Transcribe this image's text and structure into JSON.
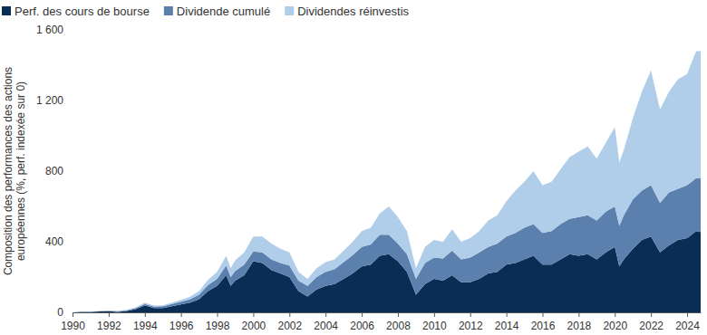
{
  "chart_data": {
    "type": "area",
    "stacked": true,
    "ylabel": "Composition des performances des actions européennes (%, perf. indexée sur 0)",
    "x": [
      1990,
      1990.5,
      1991,
      1991.5,
      1992,
      1992.5,
      1993,
      1993.5,
      1994,
      1994.5,
      1995,
      1995.5,
      1996,
      1996.5,
      1997,
      1997.5,
      1998,
      1998.5,
      1998.75,
      1999,
      1999.5,
      2000,
      2000.5,
      2001,
      2001.5,
      2002,
      2002.5,
      2003,
      2003.5,
      2004,
      2004.5,
      2005,
      2005.5,
      2006,
      2006.5,
      2007,
      2007.5,
      2008,
      2008.5,
      2009,
      2009.5,
      2010,
      2010.5,
      2011,
      2011.5,
      2012,
      2012.5,
      2013,
      2013.5,
      2014,
      2014.5,
      2015,
      2015.5,
      2016,
      2016.5,
      2017,
      2017.5,
      2018,
      2018.5,
      2019,
      2019.5,
      2020,
      2020.25,
      2020.5,
      2021,
      2021.5,
      2022,
      2022.5,
      2023,
      2023.5,
      2024,
      2024.5,
      2024.75
    ],
    "series": [
      {
        "name": "Perf. des cours de bourse",
        "color": "#0a2d55",
        "values": [
          0,
          2,
          2,
          5,
          6,
          3,
          8,
          18,
          40,
          25,
          25,
          35,
          45,
          55,
          75,
          120,
          150,
          210,
          150,
          180,
          210,
          290,
          280,
          240,
          220,
          200,
          120,
          90,
          130,
          150,
          160,
          190,
          220,
          260,
          270,
          320,
          330,
          290,
          230,
          100,
          160,
          190,
          180,
          210,
          170,
          170,
          190,
          220,
          230,
          270,
          280,
          300,
          320,
          270,
          270,
          300,
          330,
          320,
          330,
          300,
          340,
          370,
          260,
          300,
          360,
          410,
          430,
          340,
          380,
          410,
          420,
          460,
          455
        ]
      },
      {
        "name": "Dividende cumulé",
        "color": "#5b80ae",
        "values": [
          0,
          1,
          2,
          2,
          3,
          4,
          4,
          6,
          8,
          8,
          10,
          13,
          15,
          20,
          25,
          35,
          40,
          55,
          50,
          55,
          60,
          55,
          60,
          60,
          60,
          65,
          60,
          60,
          70,
          80,
          85,
          95,
          105,
          110,
          115,
          120,
          110,
          100,
          100,
          90,
          120,
          120,
          125,
          140,
          130,
          140,
          150,
          150,
          160,
          160,
          170,
          180,
          180,
          180,
          190,
          200,
          200,
          220,
          220,
          220,
          230,
          230,
          230,
          250,
          280,
          280,
          290,
          280,
          300,
          290,
          300,
          300,
          305
        ]
      },
      {
        "name": "Dividendes réinvestis",
        "color": "#b0cde9",
        "values": [
          0,
          0,
          1,
          1,
          1,
          1,
          2,
          4,
          7,
          5,
          5,
          7,
          10,
          13,
          20,
          30,
          40,
          55,
          50,
          60,
          70,
          85,
          90,
          90,
          80,
          75,
          50,
          40,
          50,
          55,
          55,
          65,
          75,
          90,
          95,
          120,
          160,
          150,
          130,
          60,
          90,
          100,
          95,
          120,
          100,
          110,
          120,
          150,
          160,
          200,
          240,
          260,
          300,
          270,
          280,
          310,
          350,
          370,
          390,
          350,
          390,
          450,
          360,
          370,
          460,
          560,
          650,
          530,
          570,
          620,
          630,
          720,
          720
        ]
      }
    ],
    "xlim": [
      1990,
      2024.75
    ],
    "xticks": [
      1990,
      1992,
      1994,
      1996,
      1998,
      2000,
      2002,
      2004,
      2006,
      2008,
      2010,
      2012,
      2014,
      2016,
      2018,
      2020,
      2022,
      2024
    ],
    "ylim": [
      0,
      1600
    ],
    "yticks": [
      0,
      400,
      800,
      {
        "value": 1200,
        "label": "1 200"
      },
      {
        "value": 1600,
        "label": "1 600"
      }
    ],
    "grid": false,
    "legend": "top-left"
  }
}
